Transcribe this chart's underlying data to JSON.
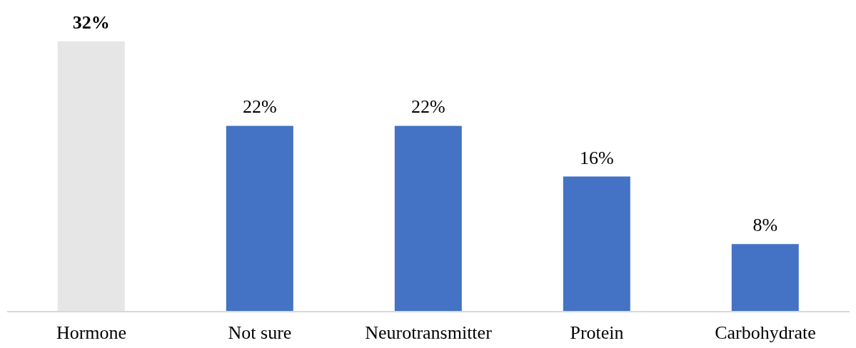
{
  "chart_data": {
    "type": "bar",
    "categories": [
      "Hormone",
      "Not sure",
      "Neurotransmitter",
      "Protein",
      "Carbohydrate"
    ],
    "values": [
      32,
      22,
      22,
      16,
      8
    ],
    "colors": [
      "#e7e6e6",
      "#4472c4",
      "#4472c4",
      "#4472c4",
      "#4472c4"
    ],
    "value_labels": [
      "32%",
      "22%",
      "22%",
      "16%",
      "8%"
    ],
    "grid": false,
    "legend": false
  }
}
